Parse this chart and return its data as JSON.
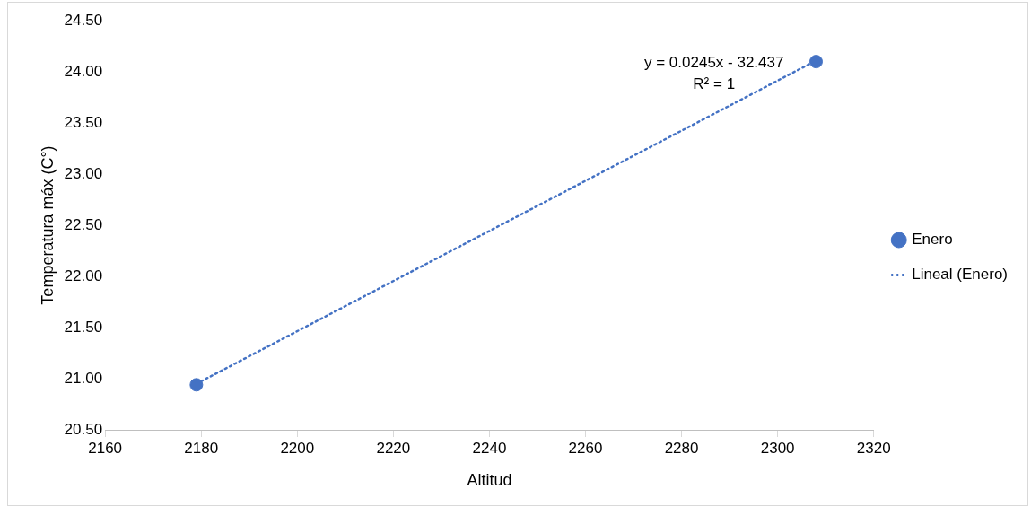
{
  "chart_data": {
    "type": "scatter",
    "xlabel": "Altitud",
    "ylabel": "Temperatura máx (C°)",
    "xlim": [
      2160,
      2320
    ],
    "xticks": [
      2160,
      2180,
      2200,
      2220,
      2240,
      2260,
      2280,
      2300,
      2320
    ],
    "ylim": [
      20.5,
      24.5
    ],
    "yticks": [
      {
        "value": 20.5,
        "label": "20.50"
      },
      {
        "value": 21,
        "label": "21.00"
      },
      {
        "value": 21.5,
        "label": "21.50"
      },
      {
        "value": 22,
        "label": "22.00"
      },
      {
        "value": 22.5,
        "label": "22.50"
      },
      {
        "value": 23,
        "label": "23.00"
      },
      {
        "value": 23.5,
        "label": "23.50"
      },
      {
        "value": 24,
        "label": "24.00"
      },
      {
        "value": 24.5,
        "label": "24.50"
      }
    ],
    "grid": false,
    "legend": "right",
    "x": [
      2179,
      2308
    ],
    "series": [
      {
        "name": "Enero",
        "color": "#4472c4",
        "marker": "circle",
        "values": [
          20.94,
          24.1
        ]
      },
      {
        "name": "Lineal (Enero)",
        "type": "line",
        "color": "#4472c4",
        "marker": "none",
        "line_style": "dotted",
        "values": [
          20.95,
          24.11
        ]
      }
    ],
    "annotations": [
      "y = 0.0245x - 32.437",
      "R² = 1"
    ]
  }
}
